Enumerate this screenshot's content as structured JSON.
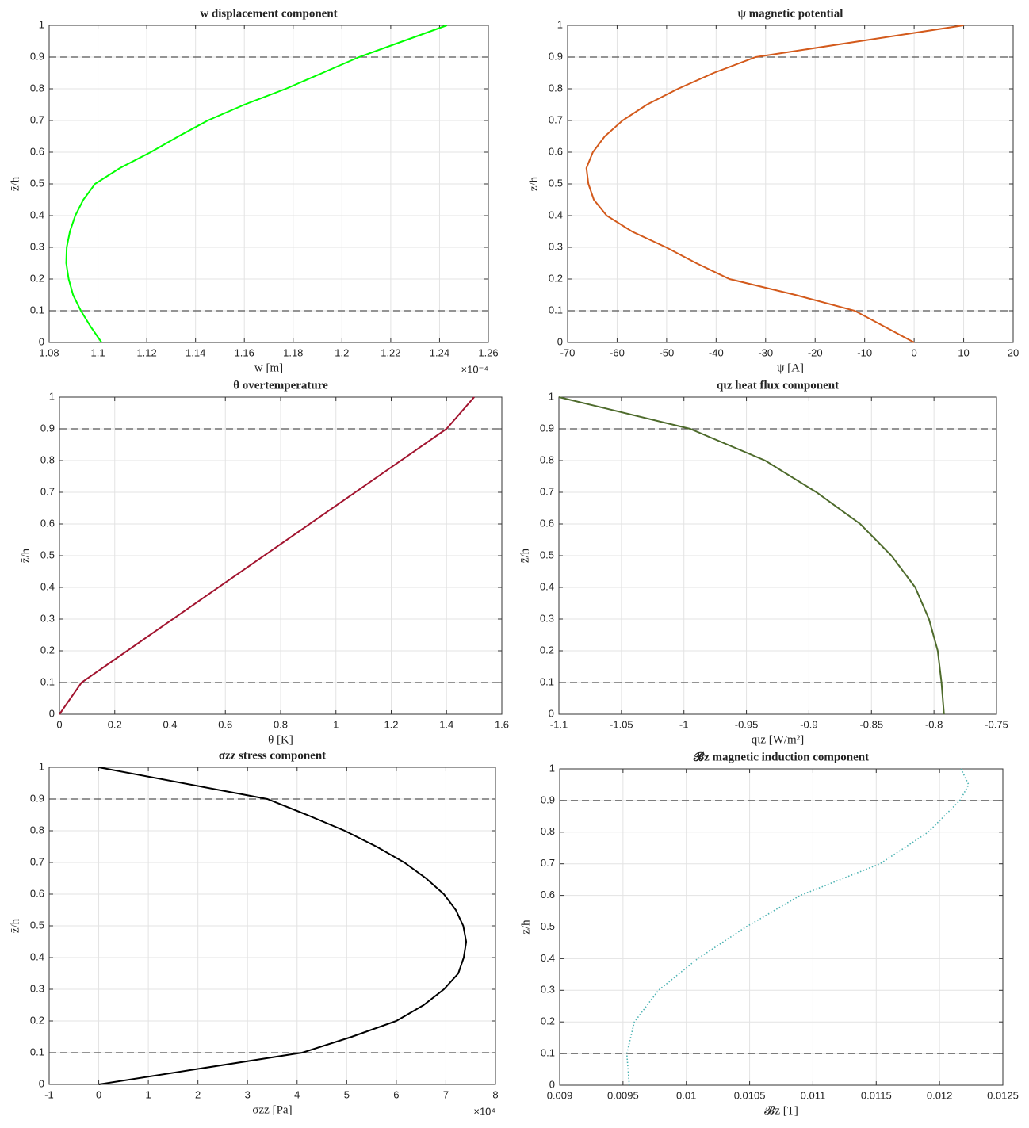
{
  "chart_data": [
    {
      "type": "line",
      "title": "w displacement component",
      "xlabel": "w [m]",
      "ylabel": "z̄/h",
      "x_exponent": "×10⁻⁴",
      "xlim": [
        1.08,
        1.26
      ],
      "xticks": [
        1.08,
        1.1,
        1.12,
        1.14,
        1.16,
        1.18,
        1.2,
        1.22,
        1.24,
        1.26
      ],
      "ylim": [
        0,
        1
      ],
      "yticks": [
        0,
        0.1,
        0.2,
        0.3,
        0.4,
        0.5,
        0.6,
        0.7,
        0.8,
        0.9,
        1
      ],
      "grid": true,
      "hlines": [
        0.1,
        0.9
      ],
      "series": [
        {
          "color": "#00ff00",
          "linestyle": "solid",
          "x": [
            1.1015,
            1.097,
            1.093,
            1.0898,
            1.088,
            1.087,
            1.0872,
            1.0885,
            1.0907,
            1.094,
            1.0988,
            1.109,
            1.1216,
            1.133,
            1.145,
            1.16,
            1.177,
            1.192,
            1.207,
            1.225,
            1.243
          ],
          "values": [
            0,
            0.05,
            0.1,
            0.15,
            0.2,
            0.25,
            0.3,
            0.35,
            0.4,
            0.45,
            0.5,
            0.55,
            0.6,
            0.65,
            0.7,
            0.75,
            0.8,
            0.85,
            0.9,
            0.95,
            1
          ]
        }
      ]
    },
    {
      "type": "line",
      "title": "ψ magnetic potential",
      "xlabel": "ψ [A]",
      "ylabel": "z̄/h",
      "xlim": [
        -70,
        20
      ],
      "xticks": [
        -70,
        -60,
        -50,
        -40,
        -30,
        -20,
        -10,
        0,
        10,
        20
      ],
      "ylim": [
        0,
        1
      ],
      "yticks": [
        0,
        0.1,
        0.2,
        0.3,
        0.4,
        0.5,
        0.6,
        0.7,
        0.8,
        0.9,
        1
      ],
      "grid": true,
      "hlines": [
        0.1,
        0.9
      ],
      "series": [
        {
          "color": "#d35a1c",
          "linestyle": "solid",
          "x": [
            0,
            -12,
            -24,
            -37.3,
            -44,
            -50.1,
            -57,
            -62.1,
            -64.7,
            -65.8,
            -66.2,
            -64.9,
            -62.5,
            -58.9,
            -54,
            -47.7,
            -40.5,
            -32,
            10
          ],
          "values": [
            0,
            0.1,
            0.15,
            0.2,
            0.25,
            0.3,
            0.35,
            0.4,
            0.45,
            0.5,
            0.55,
            0.6,
            0.65,
            0.7,
            0.75,
            0.8,
            0.85,
            0.9,
            1
          ]
        }
      ]
    },
    {
      "type": "line",
      "title": "θ overtemperature",
      "xlabel": "θ [K]",
      "ylabel": "z̄/h",
      "xlim": [
        0,
        1.6
      ],
      "xticks": [
        0,
        0.2,
        0.4,
        0.6,
        0.8,
        1,
        1.2,
        1.4,
        1.6
      ],
      "ylim": [
        0,
        1
      ],
      "yticks": [
        0,
        0.1,
        0.2,
        0.3,
        0.4,
        0.5,
        0.6,
        0.7,
        0.8,
        0.9,
        1
      ],
      "grid": true,
      "hlines": [
        0.1,
        0.9
      ],
      "series": [
        {
          "color": "#a2142f",
          "linestyle": "solid",
          "x": [
            0,
            0.08,
            1.4,
            1.5
          ],
          "values": [
            0,
            0.1,
            0.9,
            1
          ]
        }
      ]
    },
    {
      "type": "line",
      "title": "qιz heat flux component",
      "xlabel": "qιz [W/m²]",
      "ylabel": "z̄/h",
      "xlim": [
        -1.1,
        -0.75
      ],
      "xticks": [
        -1.1,
        -1.05,
        -1,
        -0.95,
        -0.9,
        -0.85,
        -0.8,
        -0.75
      ],
      "ylim": [
        0,
        1
      ],
      "yticks": [
        0,
        0.1,
        0.2,
        0.3,
        0.4,
        0.5,
        0.6,
        0.7,
        0.8,
        0.9,
        1
      ],
      "grid": true,
      "hlines": [
        0.1,
        0.9
      ],
      "series": [
        {
          "color": "#4e6b2c",
          "linestyle": "solid",
          "x": [
            -0.792,
            -0.794,
            -0.797,
            -0.804,
            -0.815,
            -0.834,
            -0.859,
            -0.894,
            -0.935,
            -0.995,
            -1.1
          ],
          "values": [
            0,
            0.1,
            0.2,
            0.3,
            0.4,
            0.5,
            0.6,
            0.7,
            0.8,
            0.9,
            1
          ]
        }
      ]
    },
    {
      "type": "line",
      "title": "σzz stress component",
      "xlabel": "σzz [Pa]",
      "ylabel": "z̄/h",
      "x_exponent": "×10⁴",
      "xlim": [
        -1,
        8
      ],
      "xticks": [
        -1,
        0,
        1,
        2,
        3,
        4,
        5,
        6,
        7,
        8
      ],
      "ylim": [
        0,
        1
      ],
      "yticks": [
        0,
        0.1,
        0.2,
        0.3,
        0.4,
        0.5,
        0.6,
        0.7,
        0.8,
        0.9,
        1
      ],
      "grid": true,
      "hlines": [
        0.1,
        0.9
      ],
      "series": [
        {
          "color": "#000000",
          "linestyle": "solid",
          "x": [
            0,
            4.1,
            5.1,
            6.0,
            6.55,
            6.96,
            7.25,
            7.36,
            7.41,
            7.35,
            7.2,
            6.96,
            6.6,
            6.16,
            5.6,
            4.96,
            4.2,
            3.4,
            0
          ],
          "values": [
            0,
            0.1,
            0.15,
            0.2,
            0.25,
            0.3,
            0.35,
            0.4,
            0.45,
            0.5,
            0.55,
            0.6,
            0.65,
            0.7,
            0.75,
            0.8,
            0.85,
            0.9,
            1
          ]
        }
      ]
    },
    {
      "type": "line",
      "title": "𝓑z magnetic induction component",
      "xlabel": "𝓑z [T]",
      "ylabel": "z̄/h",
      "xlim": [
        0.009,
        0.0125
      ],
      "xticks": [
        0.009,
        0.0095,
        0.01,
        0.0105,
        0.011,
        0.0115,
        0.012,
        0.0125
      ],
      "ylim": [
        0,
        1
      ],
      "yticks": [
        0,
        0.1,
        0.2,
        0.3,
        0.4,
        0.5,
        0.6,
        0.7,
        0.8,
        0.9,
        1
      ],
      "grid": true,
      "hlines": [
        0.1,
        0.9
      ],
      "series": [
        {
          "color": "#4db3b3",
          "linestyle": "dotted",
          "x": [
            0.00955,
            0.00953,
            0.00959,
            0.00978,
            0.01009,
            0.01047,
            0.0109,
            0.01153,
            0.01191,
            0.01216,
            0.01223,
            0.01217
          ],
          "values": [
            0,
            0.1,
            0.2,
            0.3,
            0.4,
            0.5,
            0.6,
            0.7,
            0.8,
            0.9,
            0.95,
            1
          ]
        }
      ]
    }
  ]
}
